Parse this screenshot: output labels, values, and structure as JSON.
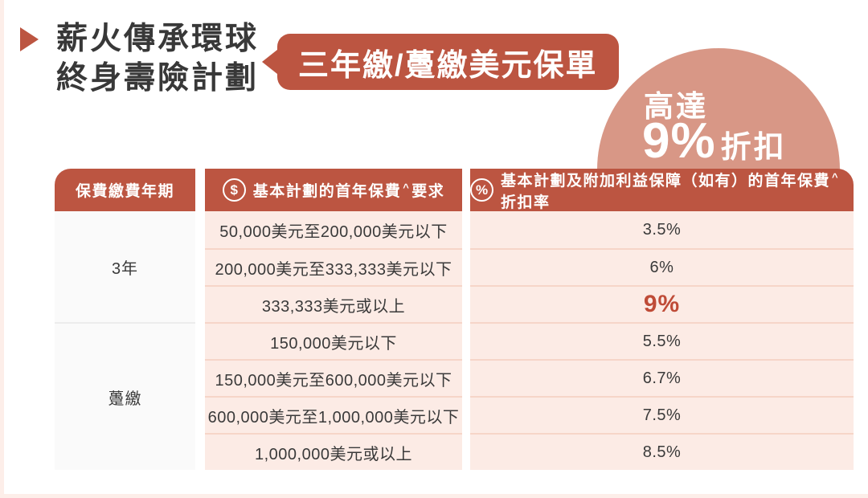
{
  "header": {
    "title_line1": "薪火傳承環球",
    "title_line2": "終身壽險計劃",
    "badge": "三年繳/躉繳美元保單"
  },
  "burst": {
    "line1": "高達",
    "big": "9%",
    "suffix": "折扣"
  },
  "colors": {
    "accent_red": "#bc5541",
    "burst_salmon": "#d89786",
    "row_pink": "#fcebe5",
    "highlight_red": "#bf4b37",
    "edge_pink": "#fdeee9"
  },
  "table": {
    "headers": {
      "period": "保費繳費年期",
      "requirement": {
        "icon": "$",
        "main": "基本計劃的首年保費",
        "sup": "^",
        "tail": "要求"
      },
      "discount": {
        "icon": "%",
        "main": "基本計劃及附加利益保障（如有）的首年保費",
        "sup": "^",
        "tail": "折扣率"
      }
    },
    "groups": [
      {
        "period": "3年",
        "rows": [
          {
            "requirement": "50,000美元至200,000美元以下",
            "discount": "3.5%"
          },
          {
            "requirement": "200,000美元至333,333美元以下",
            "discount": "6%"
          },
          {
            "requirement": "333,333美元或以上",
            "discount": "9%"
          }
        ]
      },
      {
        "period": "躉繳",
        "rows": [
          {
            "requirement": "150,000美元以下",
            "discount": "5.5%"
          },
          {
            "requirement": "150,000美元至600,000美元以下",
            "discount": "6.7%"
          },
          {
            "requirement": "600,000美元至1,000,000美元以下",
            "discount": "7.5%"
          },
          {
            "requirement": "1,000,000美元或以上",
            "discount": "8.5%"
          }
        ]
      }
    ]
  }
}
